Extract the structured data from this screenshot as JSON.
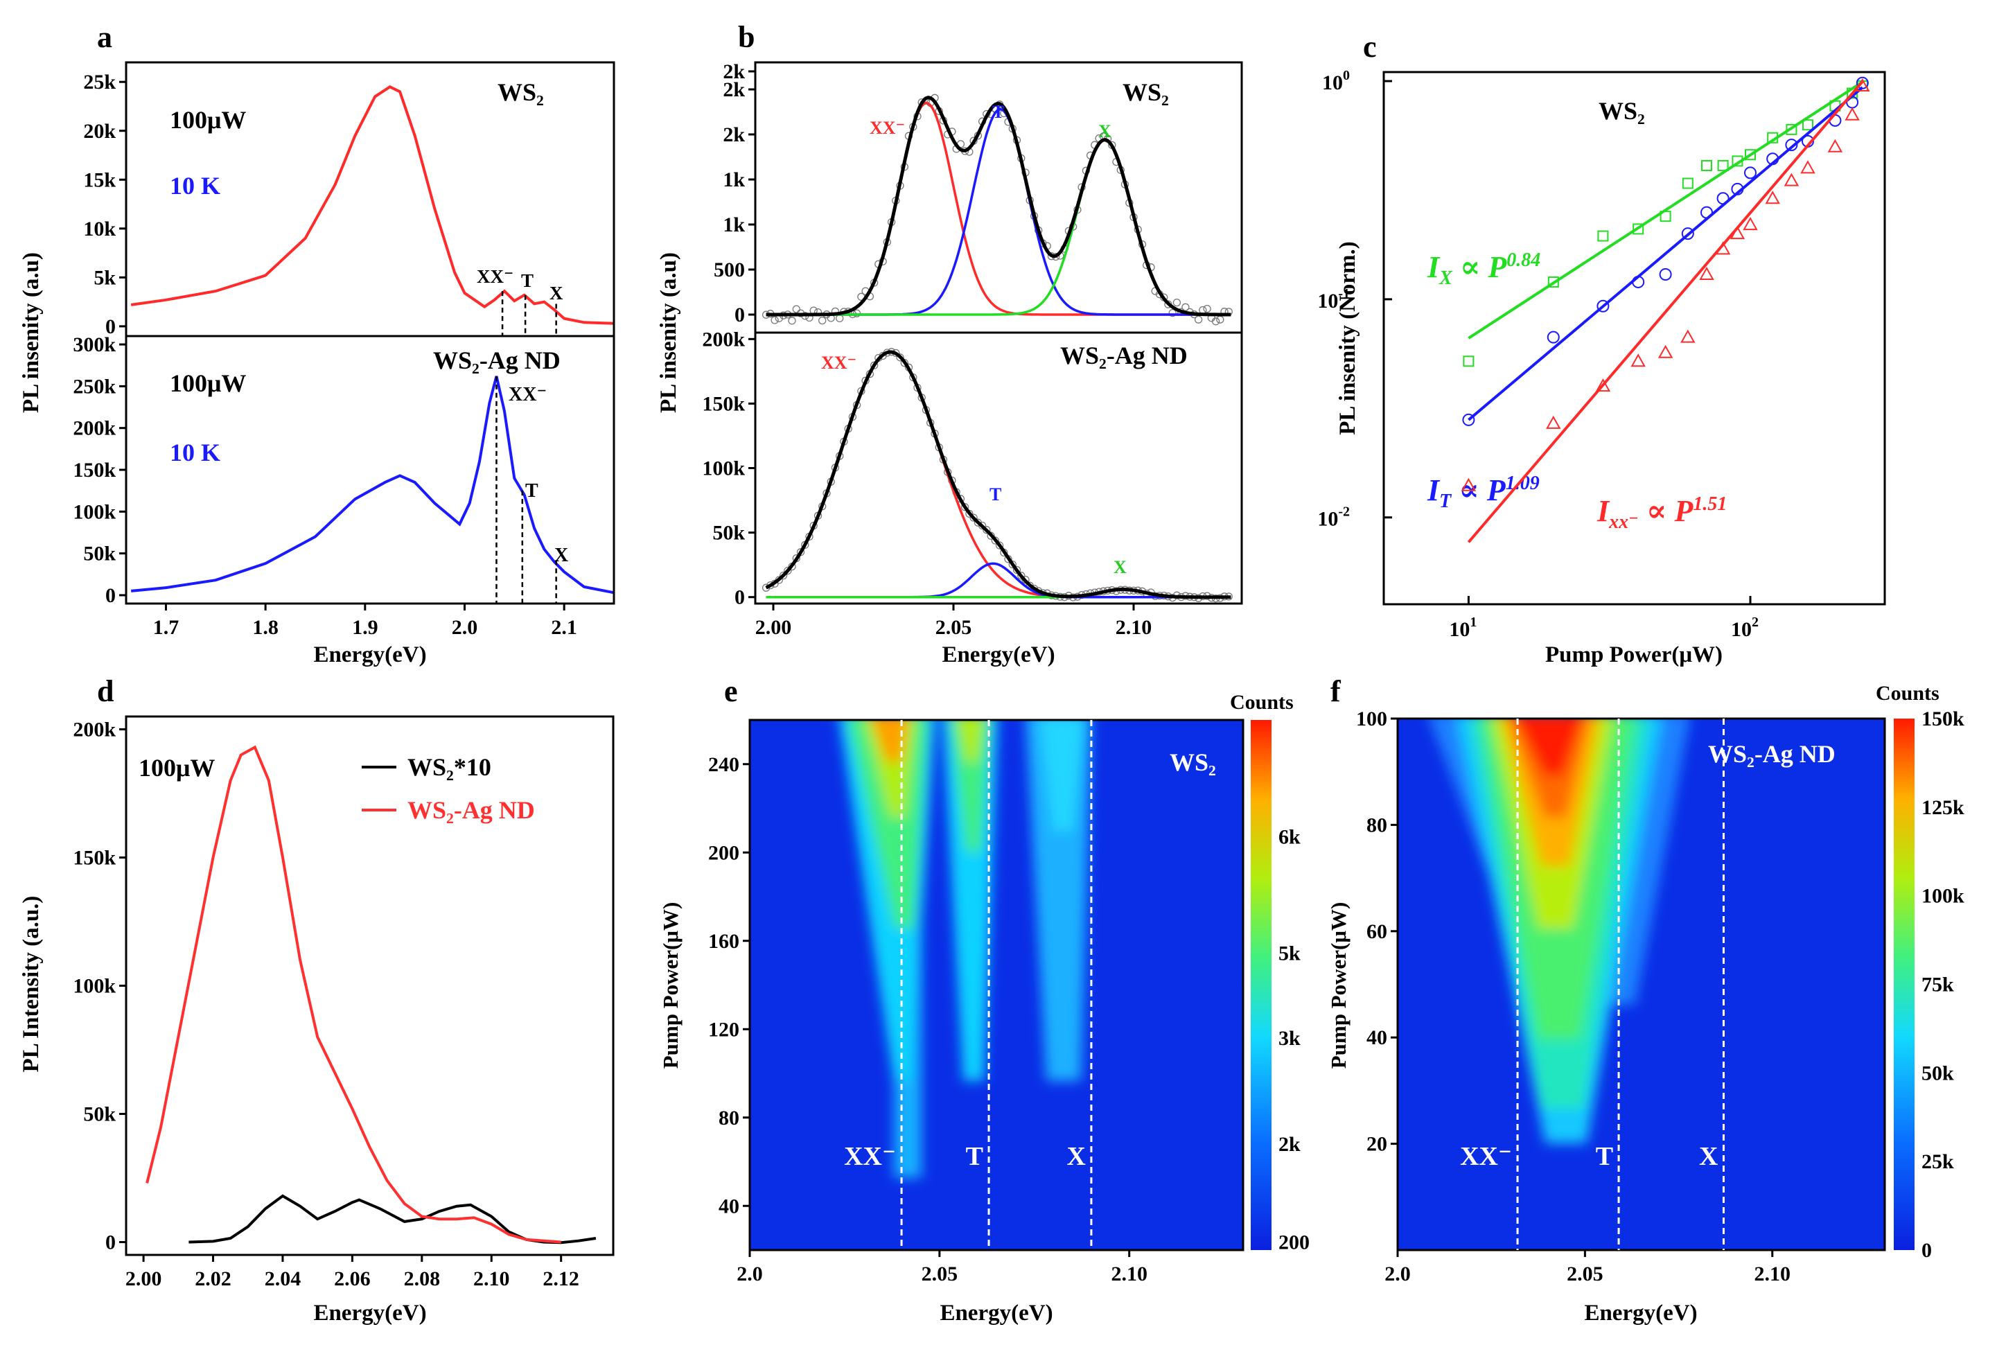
{
  "figure": {
    "panel_letters": [
      "a",
      "b",
      "c",
      "d",
      "e",
      "f"
    ]
  },
  "colors": {
    "red": "#ff2a2a",
    "blue": "#1a1aff",
    "green": "#22dd22",
    "black": "#000000",
    "gray": "#777777"
  },
  "chart_data": [
    {
      "id": "a",
      "type": "line",
      "xlabel": "Energy(eV)",
      "ylabel": "PL insenity (a.u)",
      "xlim": [
        1.66,
        2.15
      ],
      "xticks": [
        "1.7",
        "1.8",
        "1.9",
        "2.0",
        "2.1"
      ],
      "subplots": [
        {
          "id": "a_top",
          "sample": "WS₂",
          "power": "100μW",
          "temp": "10 K",
          "ylim": [
            -1000,
            27000
          ],
          "yticks": [
            "0",
            "5k",
            "10k",
            "15k",
            "20k",
            "25k"
          ],
          "peak_labels": [
            "XX⁻",
            "T",
            "X"
          ],
          "series": [
            {
              "name": "WS2",
              "color": "red",
              "x": [
                1.665,
                1.7,
                1.75,
                1.8,
                1.84,
                1.87,
                1.89,
                1.91,
                1.925,
                1.935,
                1.95,
                1.97,
                1.99,
                2.0,
                2.02,
                2.03,
                2.04,
                2.05,
                2.06,
                2.07,
                2.08,
                2.09,
                2.1,
                2.12,
                2.15
              ],
              "y": [
                2200,
                2700,
                3600,
                5200,
                9000,
                14500,
                19500,
                23500,
                24500,
                24000,
                19500,
                12000,
                5500,
                3400,
                2000,
                2700,
                3600,
                2600,
                3200,
                2300,
                2500,
                1700,
                800,
                400,
                300
              ]
            }
          ]
        },
        {
          "id": "a_bot",
          "sample": "WS₂-Ag ND",
          "power": "100μW",
          "temp": "10 K",
          "ylim": [
            -10000,
            310000
          ],
          "yticks": [
            "0",
            "50k",
            "100k",
            "150k",
            "200k",
            "250k",
            "300k"
          ],
          "peak_labels": [
            "XX⁻",
            "T",
            "X"
          ],
          "series": [
            {
              "name": "WS2-Ag ND",
              "color": "blue",
              "x": [
                1.665,
                1.7,
                1.75,
                1.8,
                1.85,
                1.89,
                1.92,
                1.935,
                1.95,
                1.97,
                1.985,
                1.995,
                2.005,
                2.015,
                2.025,
                2.032,
                2.04,
                2.05,
                2.06,
                2.07,
                2.08,
                2.09,
                2.1,
                2.12,
                2.15
              ],
              "y": [
                5000,
                9000,
                18000,
                38000,
                70000,
                115000,
                135000,
                143000,
                135000,
                110000,
                95000,
                85000,
                110000,
                160000,
                230000,
                262000,
                220000,
                140000,
                120000,
                80000,
                55000,
                40000,
                28000,
                10000,
                3000
              ]
            }
          ]
        }
      ]
    },
    {
      "id": "b",
      "type": "line",
      "xlabel": "Energy(eV)",
      "ylabel": "PL insenity (a.u)",
      "xlim": [
        1.995,
        2.13
      ],
      "xticks": [
        "2.00",
        "2.05",
        "2.10"
      ],
      "subplots": [
        {
          "id": "b_top",
          "sample": "WS₂",
          "ylim": [
            -200,
            2800
          ],
          "yticks": [
            "0",
            "500",
            "1k",
            "1k",
            "2k",
            "2k",
            "2k"
          ],
          "peak_labels": [
            "XX⁻",
            "T",
            "X"
          ],
          "series": [
            {
              "name": "fit XX",
              "color": "red",
              "gaussian": {
                "amp": 2350,
                "center": 2.0425,
                "sigma": 0.0075
              }
            },
            {
              "name": "fit T",
              "color": "blue",
              "gaussian": {
                "amp": 2280,
                "center": 2.063,
                "sigma": 0.0075
              }
            },
            {
              "name": "fit X",
              "color": "green",
              "gaussian": {
                "amp": 1940,
                "center": 2.092,
                "sigma": 0.0075
              }
            },
            {
              "name": "sum",
              "color": "black",
              "sum": true
            }
          ]
        },
        {
          "id": "b_bot",
          "sample": "WS₂-Ag ND",
          "ylim": [
            -5000,
            205000
          ],
          "yticks": [
            "0",
            "50k",
            "100k",
            "150k",
            "200k"
          ],
          "peak_labels": [
            "XX⁻",
            "T",
            "X"
          ],
          "series": [
            {
              "name": "fit XX",
              "color": "red",
              "gaussian": {
                "amp": 190000,
                "center": 2.0325,
                "sigma": 0.0135
              }
            },
            {
              "name": "fit T",
              "color": "blue",
              "gaussian": {
                "amp": 26000,
                "center": 2.061,
                "sigma": 0.006
              }
            },
            {
              "name": "fit X",
              "color": "green",
              "gaussian": {
                "amp": 6000,
                "center": 2.097,
                "sigma": 0.006
              }
            },
            {
              "name": "sum",
              "color": "black",
              "sum": true
            }
          ]
        }
      ]
    },
    {
      "id": "c",
      "type": "scatter",
      "xscale": "log",
      "yscale": "log",
      "xlabel": "Pump Power(μW)",
      "ylabel": "PL insenity (Norm.)",
      "xlim": [
        5,
        300
      ],
      "ylim": [
        0.004,
        1.1
      ],
      "xticks": [
        {
          "v": 10,
          "b": "10",
          "e": "1"
        },
        {
          "v": 100,
          "b": "10",
          "e": "2"
        }
      ],
      "yticks": [
        {
          "v": 0.01,
          "b": "10",
          "e": "-2"
        },
        {
          "v": 0.1,
          "b": "10",
          "e": "-1"
        },
        {
          "v": 1,
          "b": "10",
          "e": "0"
        }
      ],
      "sample": "WS₂",
      "series": [
        {
          "name": "X",
          "color": "green",
          "marker": "square",
          "slope": 0.84,
          "fit": [
            10,
            250
          ],
          "fitA": 0.0663,
          "x": [
            10,
            20,
            30,
            40,
            50,
            60,
            70,
            80,
            90,
            100,
            120,
            140,
            160,
            200,
            230,
            250
          ],
          "y": [
            0.052,
            0.12,
            0.195,
            0.21,
            0.24,
            0.34,
            0.41,
            0.41,
            0.43,
            0.46,
            0.55,
            0.6,
            0.63,
            0.77,
            0.88,
            0.95
          ],
          "label": {
            "I": "I",
            "sub": "X",
            "mid": " ∝ P",
            "sup": "0.84"
          }
        },
        {
          "name": "T",
          "color": "blue",
          "marker": "circle",
          "slope": 1.09,
          "fit": [
            10,
            250
          ],
          "fitA": 0.028,
          "x": [
            10,
            20,
            30,
            40,
            50,
            60,
            70,
            80,
            90,
            100,
            120,
            140,
            160,
            200,
            230,
            250
          ],
          "y": [
            0.028,
            0.067,
            0.093,
            0.12,
            0.13,
            0.2,
            0.25,
            0.29,
            0.32,
            0.38,
            0.44,
            0.51,
            0.53,
            0.66,
            0.8,
            0.98
          ],
          "label": {
            "I": "I",
            "sub": "T",
            "mid": " ∝ P",
            "sup": "1.09"
          }
        },
        {
          "name": "XX",
          "color": "red",
          "marker": "triangle",
          "slope": 1.51,
          "fit": [
            10,
            250
          ],
          "fitA": 0.0077,
          "x": [
            10,
            20,
            30,
            40,
            50,
            60,
            70,
            80,
            90,
            100,
            120,
            140,
            160,
            200,
            230,
            250
          ],
          "y": [
            0.014,
            0.027,
            0.04,
            0.052,
            0.057,
            0.067,
            0.13,
            0.17,
            0.2,
            0.22,
            0.29,
            0.35,
            0.4,
            0.5,
            0.7,
            0.95
          ],
          "label": {
            "I": "I",
            "sub": "xx⁻",
            "mid": " ∝ P",
            "sup": "1.51"
          }
        }
      ]
    },
    {
      "id": "d",
      "type": "line",
      "xlabel": "Energy(eV)",
      "ylabel": "PL Intensity (a.u.)",
      "xlim": [
        1.995,
        2.135
      ],
      "ylim": [
        -5000,
        205000
      ],
      "xticks": [
        "2.00",
        "2.02",
        "2.04",
        "2.06",
        "2.08",
        "2.10",
        "2.12"
      ],
      "yticks": [
        "0",
        "50k",
        "100k",
        "150k",
        "200k"
      ],
      "power": "100μW",
      "legend": [
        {
          "label": "WS₂*10",
          "color": "black"
        },
        {
          "label": "WS₂-Ag ND",
          "color": "red"
        }
      ],
      "series": [
        {
          "name": "WS2*10",
          "color": "black",
          "x": [
            2.013,
            2.02,
            2.025,
            2.03,
            2.035,
            2.04,
            2.045,
            2.05,
            2.055,
            2.06,
            2.062,
            2.068,
            2.075,
            2.08,
            2.085,
            2.09,
            2.094,
            2.1,
            2.105,
            2.11,
            2.115,
            2.12,
            2.125,
            2.13
          ],
          "y": [
            0,
            300,
            1500,
            6000,
            13000,
            18000,
            14000,
            9000,
            12000,
            15500,
            16500,
            13000,
            8000,
            9000,
            12000,
            14000,
            14500,
            10000,
            4000,
            1000,
            0,
            -200,
            500,
            1500
          ]
        },
        {
          "name": "WS2-Ag ND",
          "color": "red",
          "x": [
            2.001,
            2.005,
            2.01,
            2.015,
            2.02,
            2.025,
            2.028,
            2.032,
            2.036,
            2.04,
            2.045,
            2.05,
            2.055,
            2.06,
            2.065,
            2.07,
            2.075,
            2.08,
            2.085,
            2.09,
            2.095,
            2.1,
            2.105,
            2.11,
            2.12
          ],
          "y": [
            23000,
            45000,
            80000,
            115000,
            150000,
            180000,
            190000,
            193000,
            180000,
            150000,
            110000,
            80000,
            66000,
            52000,
            37000,
            24000,
            15000,
            10000,
            9000,
            9000,
            9500,
            7000,
            3000,
            1000,
            0
          ]
        }
      ]
    },
    {
      "id": "e",
      "type": "heatmap",
      "xlabel": "Energy(eV)",
      "ylabel": "Pump Power(μW)",
      "colorbar_title": "Counts",
      "xlim": [
        2.0,
        2.13
      ],
      "ylim": [
        20,
        260
      ],
      "xticks": [
        "2.0",
        "2.05",
        "2.10"
      ],
      "yticks": [
        "40",
        "80",
        "120",
        "160",
        "200",
        "240"
      ],
      "colorbar_ticks": [
        "200",
        "2k",
        "3k",
        "5k",
        "6k"
      ],
      "sample": "WS₂",
      "markers": [
        {
          "label": "XX⁻",
          "x": 2.04
        },
        {
          "label": "T",
          "x": 2.063
        },
        {
          "label": "X",
          "x": 2.09
        }
      ]
    },
    {
      "id": "f",
      "type": "heatmap",
      "xlabel": "Energy(eV)",
      "ylabel": "Pump Power(μW)",
      "colorbar_title": "Counts",
      "xlim": [
        2.0,
        2.13
      ],
      "ylim": [
        0,
        100
      ],
      "xticks": [
        "2.0",
        "2.05",
        "2.10"
      ],
      "yticks": [
        "20",
        "40",
        "60",
        "80",
        "100"
      ],
      "colorbar_ticks": [
        "0",
        "25k",
        "50k",
        "75k",
        "100k",
        "125k",
        "150k"
      ],
      "sample": "WS₂-Ag ND",
      "markers": [
        {
          "label": "XX⁻",
          "x": 2.032
        },
        {
          "label": "T",
          "x": 2.059
        },
        {
          "label": "X",
          "x": 2.087
        }
      ]
    }
  ]
}
